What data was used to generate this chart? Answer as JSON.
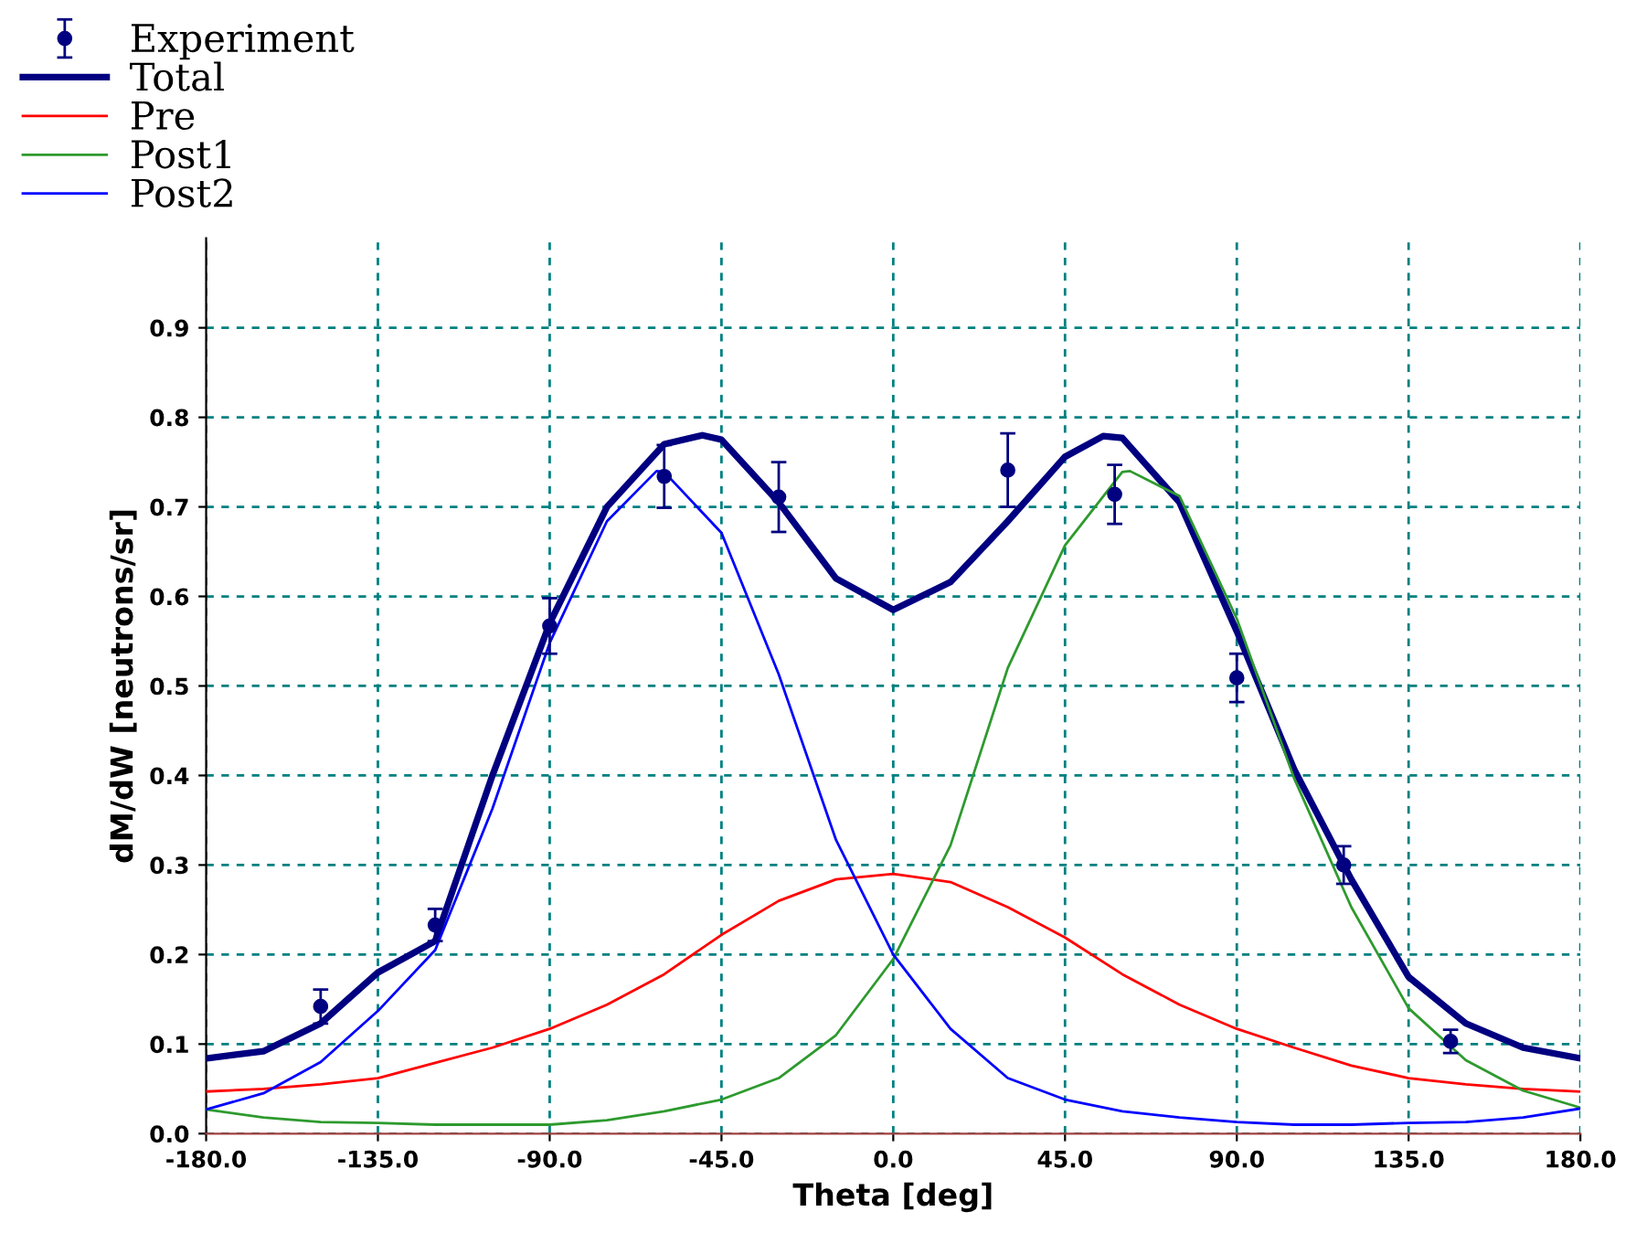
{
  "chart_data": {
    "type": "line",
    "xlabel": "Theta [deg]",
    "ylabel": "dM/dW [neutrons/sr]",
    "xlim": [
      -180,
      180
    ],
    "ylim": [
      0,
      1.0
    ],
    "xticks": [
      {
        "value": -180,
        "label": "-180.0"
      },
      {
        "value": -135,
        "label": "-135.0"
      },
      {
        "value": -90,
        "label": "-90.0"
      },
      {
        "value": -45,
        "label": "-45.0"
      },
      {
        "value": 0,
        "label": "0.0"
      },
      {
        "value": 45,
        "label": "45.0"
      },
      {
        "value": 90,
        "label": "90.0"
      },
      {
        "value": 135,
        "label": "135.0"
      },
      {
        "value": 180,
        "label": "180.0"
      }
    ],
    "yticks": [
      {
        "value": 0,
        "label": "0.0"
      },
      0.1,
      0.2,
      0.3,
      0.4,
      0.5,
      0.6,
      0.7,
      0.8,
      0.9
    ],
    "grid": true,
    "legend": "top left",
    "series": [
      {
        "name": "Experiment",
        "type": "scatter",
        "marker": "circle",
        "color": "#000080",
        "x": [
          -150,
          -120,
          -90,
          -60,
          -30,
          30,
          58,
          90,
          118,
          146
        ],
        "values": [
          0.142,
          0.233,
          0.567,
          0.734,
          0.711,
          0.741,
          0.714,
          0.509,
          0.3,
          0.103
        ],
        "errors": [
          0.019,
          0.018,
          0.031,
          0.035,
          0.039,
          0.041,
          0.033,
          0.027,
          0.021,
          0.013
        ]
      },
      {
        "name": "Total",
        "color": "#000080",
        "x": [
          -180,
          -165,
          -150,
          -135,
          -120,
          -105,
          -90,
          -75,
          -60,
          -50,
          -45,
          -30,
          -15,
          0,
          15,
          30,
          45,
          55,
          60,
          75,
          90,
          105,
          120,
          135,
          150,
          165,
          180
        ],
        "values": [
          0.084,
          0.092,
          0.123,
          0.18,
          0.215,
          0.4,
          0.57,
          0.7,
          0.77,
          0.78,
          0.775,
          0.705,
          0.62,
          0.585,
          0.616,
          0.684,
          0.756,
          0.779,
          0.777,
          0.705,
          0.561,
          0.407,
          0.284,
          0.175,
          0.123,
          0.096,
          0.084
        ]
      },
      {
        "name": "Pre",
        "color": "#ff0000",
        "x": [
          -180,
          -165,
          -150,
          -135,
          -120,
          -105,
          -90,
          -75,
          -60,
          -45,
          -30,
          -15,
          0,
          15,
          30,
          45,
          60,
          75,
          90,
          105,
          120,
          135,
          150,
          165,
          180
        ],
        "values": [
          0.047,
          0.05,
          0.055,
          0.062,
          0.079,
          0.096,
          0.117,
          0.144,
          0.178,
          0.222,
          0.26,
          0.284,
          0.29,
          0.281,
          0.253,
          0.219,
          0.178,
          0.144,
          0.117,
          0.096,
          0.076,
          0.062,
          0.055,
          0.05,
          0.047
        ]
      },
      {
        "name": "Post1",
        "color": "#2e9a2e",
        "x": [
          -180,
          -165,
          -150,
          -135,
          -120,
          -105,
          -90,
          -75,
          -60,
          -45,
          -30,
          -15,
          0,
          15,
          30,
          45,
          60,
          62,
          75,
          90,
          105,
          120,
          135,
          150,
          165,
          180
        ],
        "values": [
          0.027,
          0.018,
          0.013,
          0.012,
          0.01,
          0.01,
          0.01,
          0.015,
          0.025,
          0.038,
          0.062,
          0.11,
          0.195,
          0.322,
          0.52,
          0.657,
          0.739,
          0.74,
          0.712,
          0.575,
          0.397,
          0.253,
          0.14,
          0.082,
          0.048,
          0.029
        ]
      },
      {
        "name": "Post2",
        "color": "#0000ff",
        "x": [
          -180,
          -165,
          -150,
          -135,
          -120,
          -105,
          -90,
          -75,
          -62,
          -60,
          -45,
          -30,
          -15,
          0,
          15,
          30,
          45,
          60,
          75,
          90,
          105,
          120,
          135,
          150,
          165,
          180
        ],
        "values": [
          0.027,
          0.045,
          0.08,
          0.137,
          0.205,
          0.363,
          0.548,
          0.684,
          0.74,
          0.739,
          0.671,
          0.513,
          0.328,
          0.2,
          0.117,
          0.062,
          0.038,
          0.025,
          0.018,
          0.013,
          0.01,
          0.01,
          0.012,
          0.013,
          0.018,
          0.028
        ]
      }
    ]
  }
}
